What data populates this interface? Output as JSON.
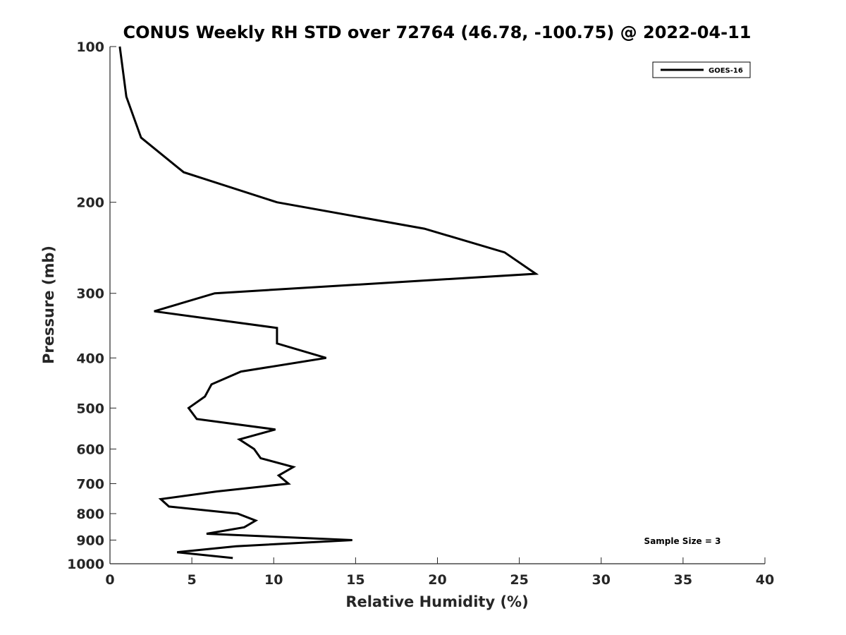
{
  "chart_data": {
    "type": "line",
    "title": "CONUS Weekly RH STD over 72764 (46.78, -100.75) @ 2022-04-11",
    "xlabel": "Relative Humidity (%)",
    "ylabel": "Pressure (mb)",
    "xlim": [
      0,
      40
    ],
    "ylim": [
      100,
      1000
    ],
    "y_scale": "log",
    "y_reversed": true,
    "x_ticks": [
      0,
      5,
      10,
      15,
      20,
      25,
      30,
      35,
      40
    ],
    "y_ticks": [
      100,
      200,
      300,
      400,
      500,
      600,
      700,
      800,
      900,
      1000
    ],
    "grid": false,
    "legend_position": "top-right",
    "annotation": "Sample Size = 3",
    "series": [
      {
        "name": "GOES-16",
        "color": "#000000",
        "points": [
          {
            "p": 100,
            "rh": 0.6
          },
          {
            "p": 125,
            "rh": 1.0
          },
          {
            "p": 150,
            "rh": 1.9
          },
          {
            "p": 175,
            "rh": 4.5
          },
          {
            "p": 200,
            "rh": 10.2
          },
          {
            "p": 225,
            "rh": 19.2
          },
          {
            "p": 250,
            "rh": 24.1
          },
          {
            "p": 275,
            "rh": 26.0
          },
          {
            "p": 300,
            "rh": 6.4
          },
          {
            "p": 325,
            "rh": 2.7
          },
          {
            "p": 350,
            "rh": 10.2
          },
          {
            "p": 375,
            "rh": 10.2
          },
          {
            "p": 400,
            "rh": 13.2
          },
          {
            "p": 425,
            "rh": 8.0
          },
          {
            "p": 450,
            "rh": 6.2
          },
          {
            "p": 475,
            "rh": 5.8
          },
          {
            "p": 500,
            "rh": 4.8
          },
          {
            "p": 525,
            "rh": 5.3
          },
          {
            "p": 550,
            "rh": 10.1
          },
          {
            "p": 575,
            "rh": 7.9
          },
          {
            "p": 600,
            "rh": 8.8
          },
          {
            "p": 625,
            "rh": 9.2
          },
          {
            "p": 650,
            "rh": 11.2
          },
          {
            "p": 675,
            "rh": 10.3
          },
          {
            "p": 700,
            "rh": 10.9
          },
          {
            "p": 725,
            "rh": 6.5
          },
          {
            "p": 750,
            "rh": 3.1
          },
          {
            "p": 775,
            "rh": 3.6
          },
          {
            "p": 800,
            "rh": 7.8
          },
          {
            "p": 825,
            "rh": 8.9
          },
          {
            "p": 850,
            "rh": 8.2
          },
          {
            "p": 875,
            "rh": 5.9
          },
          {
            "p": 900,
            "rh": 14.8
          },
          {
            "p": 925,
            "rh": 7.7
          },
          {
            "p": 950,
            "rh": 4.1
          },
          {
            "p": 975,
            "rh": 7.5
          }
        ]
      }
    ]
  }
}
